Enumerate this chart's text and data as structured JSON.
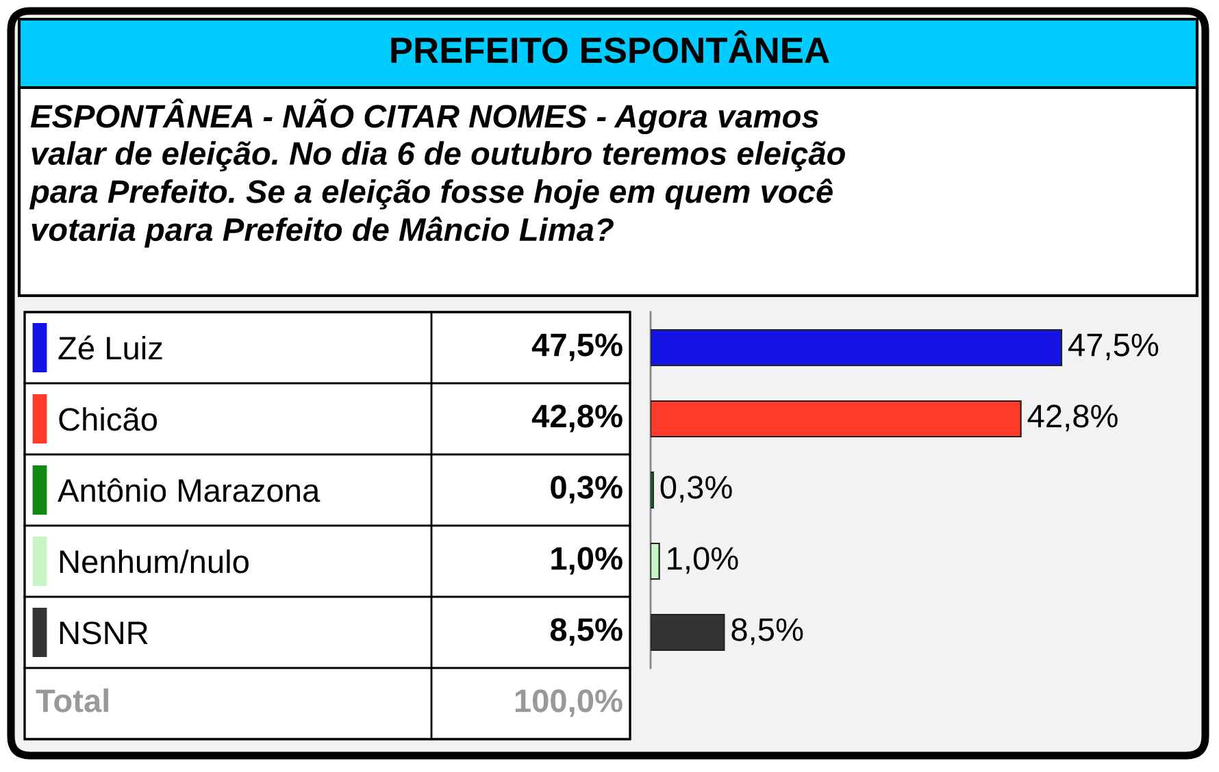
{
  "chart_data": {
    "type": "bar",
    "orientation": "horizontal",
    "title": "PREFEITO ESPONTÂNEA",
    "subtitle": "ESPONTÂNEA - NÃO CITAR NOMES - Agora vamos\nvalar de eleição. No dia 6 de outubro teremos eleição\npara Prefeito. Se a eleição fosse hoje em quem você\nvotaria para Prefeito de Mâncio Lima?",
    "categories": [
      "Zé Luiz",
      "Chicão",
      "Antônio Marazona",
      "Nenhum/nulo",
      "NSNR"
    ],
    "values": [
      47.5,
      42.8,
      0.3,
      1.0,
      8.5
    ],
    "colors": [
      "#1414e6",
      "#ff3b2a",
      "#138a13",
      "#c8f5c8",
      "#333333"
    ],
    "value_labels": [
      "47,5%",
      "42,8%",
      "0,3%",
      "1,0%",
      "8,5%"
    ],
    "annotations": [
      "Total",
      "100,0%"
    ]
  }
}
